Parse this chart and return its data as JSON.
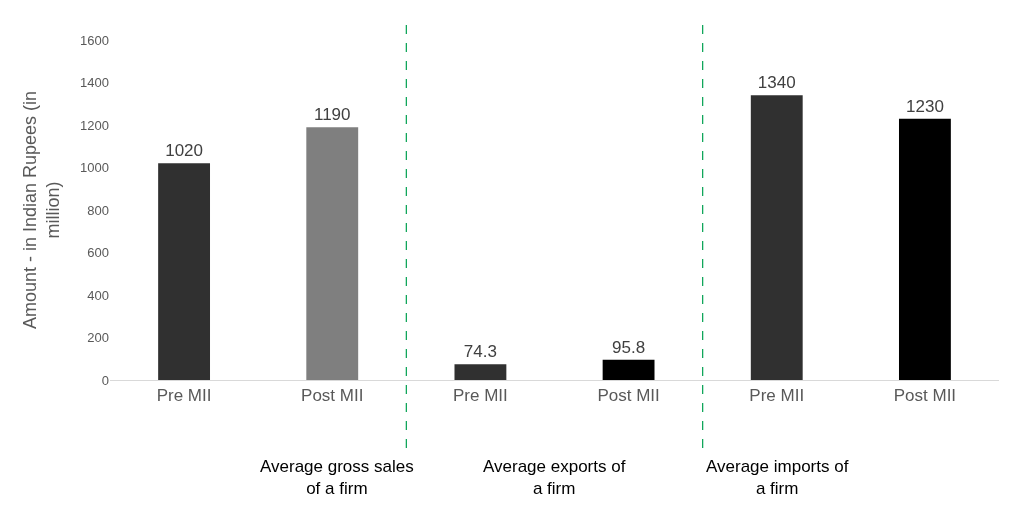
{
  "chart_data": {
    "type": "bar",
    "ylabel": "Amount - in Indian Rupees (in million)",
    "categories": [
      "Pre MII",
      "Post MII",
      "Pre MII",
      "Post MII",
      "Pre MII",
      "Post MII"
    ],
    "values": [
      1020,
      1190,
      74.3,
      95.8,
      1340,
      1230
    ],
    "colors": [
      "#303030",
      "#7f7f7f",
      "#303030",
      "#000000",
      "#303030",
      "#000000"
    ],
    "ylim": [
      0,
      1600
    ],
    "yticks": [
      0,
      200,
      400,
      600,
      800,
      1000,
      1200,
      1400,
      1600
    ],
    "data_labels": true,
    "annotations": [
      "Average gross sales\nof a firm",
      "Average exports of\na firm",
      "Average imports of\na firm"
    ]
  }
}
